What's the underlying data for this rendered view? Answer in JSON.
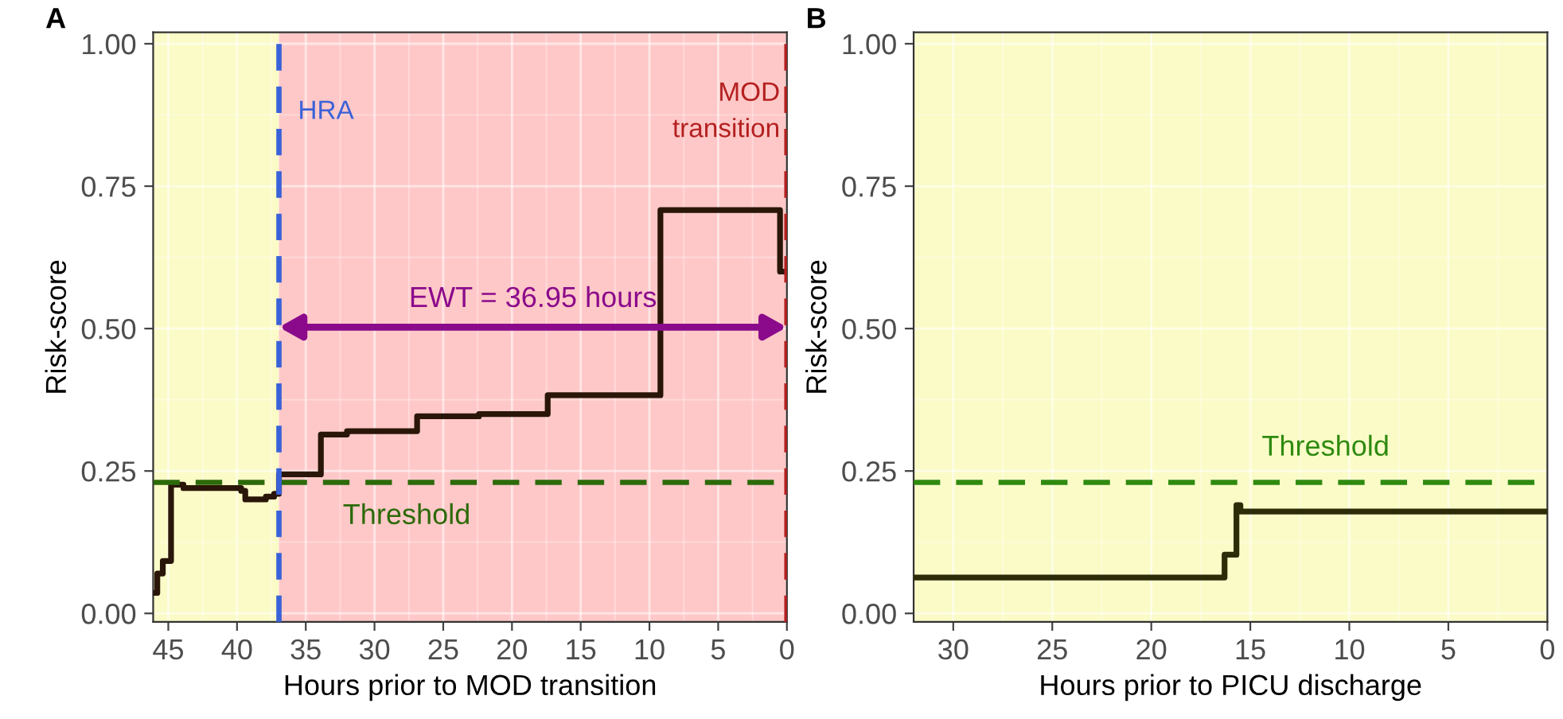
{
  "chart_data": [
    {
      "type": "step",
      "title": "A",
      "xlabel": "Hours prior to MOD transition",
      "ylabel": "Risk-score",
      "xlim": [
        46.1,
        0
      ],
      "xticks": [
        45,
        40,
        35,
        30,
        25,
        20,
        15,
        10,
        5,
        0
      ],
      "ylim": [
        -0.015,
        1.02
      ],
      "yticks": [
        {
          "value": 0,
          "label": "0.00"
        },
        {
          "value": 0.25,
          "label": "0.25"
        },
        {
          "value": 0.5,
          "label": "0.50"
        },
        {
          "value": 0.75,
          "label": "0.75"
        },
        {
          "value": 1,
          "label": "1.00"
        }
      ],
      "grid": true,
      "line_style": "solid",
      "series": [
        {
          "color": "#2a1608",
          "x": [
            46.0,
            45.8,
            45.4,
            44.8,
            43.9,
            39.7,
            39.4,
            38.8,
            37.9,
            37.3,
            36.95,
            33.9,
            32.0,
            26.9,
            22.4,
            17.4,
            9.2,
            0.5,
            0.0
          ],
          "values": [
            0.036,
            0.07,
            0.092,
            0.226,
            0.22,
            0.215,
            0.2,
            0.2,
            0.205,
            0.21,
            0.244,
            0.314,
            0.32,
            0.346,
            0.35,
            0.383,
            0.708,
            0.6,
            0.6
          ]
        }
      ],
      "bands": [
        {
          "axis": "x",
          "from": 46.1,
          "to": 36.95,
          "color": "#fbfbc8"
        },
        {
          "axis": "x",
          "from": 36.95,
          "to": 0,
          "color": "#ffc8c8"
        }
      ],
      "ref_lines": [
        {
          "axis": "y",
          "value": 0.23,
          "label": "Threshold",
          "color": "#2d6a0a",
          "line_style": "dashed"
        },
        {
          "axis": "x",
          "value": 36.95,
          "label": "HRA",
          "color": "#3a62d8",
          "line_style": "dashed"
        },
        {
          "axis": "x",
          "value": 0,
          "label": "MOD\ntransition",
          "color": "#b42020",
          "line_style": "dashed"
        }
      ],
      "annotations": [
        "EWT = 36.95 hours"
      ]
    },
    {
      "type": "step",
      "title": "B",
      "xlabel": "Hours prior to PICU discharge",
      "ylabel": "Risk-score",
      "xlim": [
        32.0,
        0
      ],
      "xticks": [
        30,
        25,
        20,
        15,
        10,
        5,
        0
      ],
      "ylim": [
        -0.015,
        1.02
      ],
      "yticks": [
        {
          "value": 0,
          "label": "0.00"
        },
        {
          "value": 0.25,
          "label": "0.25"
        },
        {
          "value": 0.5,
          "label": "0.50"
        },
        {
          "value": 0.75,
          "label": "0.75"
        },
        {
          "value": 1,
          "label": "1.00"
        }
      ],
      "grid": true,
      "line_style": "solid",
      "series": [
        {
          "color": "#2c2c08",
          "x": [
            32.0,
            16.3,
            15.7,
            15.5,
            0.0
          ],
          "values": [
            0.063,
            0.103,
            0.19,
            0.179,
            0.179
          ]
        }
      ],
      "bands": [
        {
          "axis": "x",
          "from": 32.0,
          "to": 0,
          "color": "#fbfbc8"
        }
      ],
      "ref_lines": [
        {
          "axis": "y",
          "value": 0.23,
          "label": "Threshold",
          "color": "#2f8a10",
          "line_style": "dashed"
        }
      ]
    }
  ]
}
